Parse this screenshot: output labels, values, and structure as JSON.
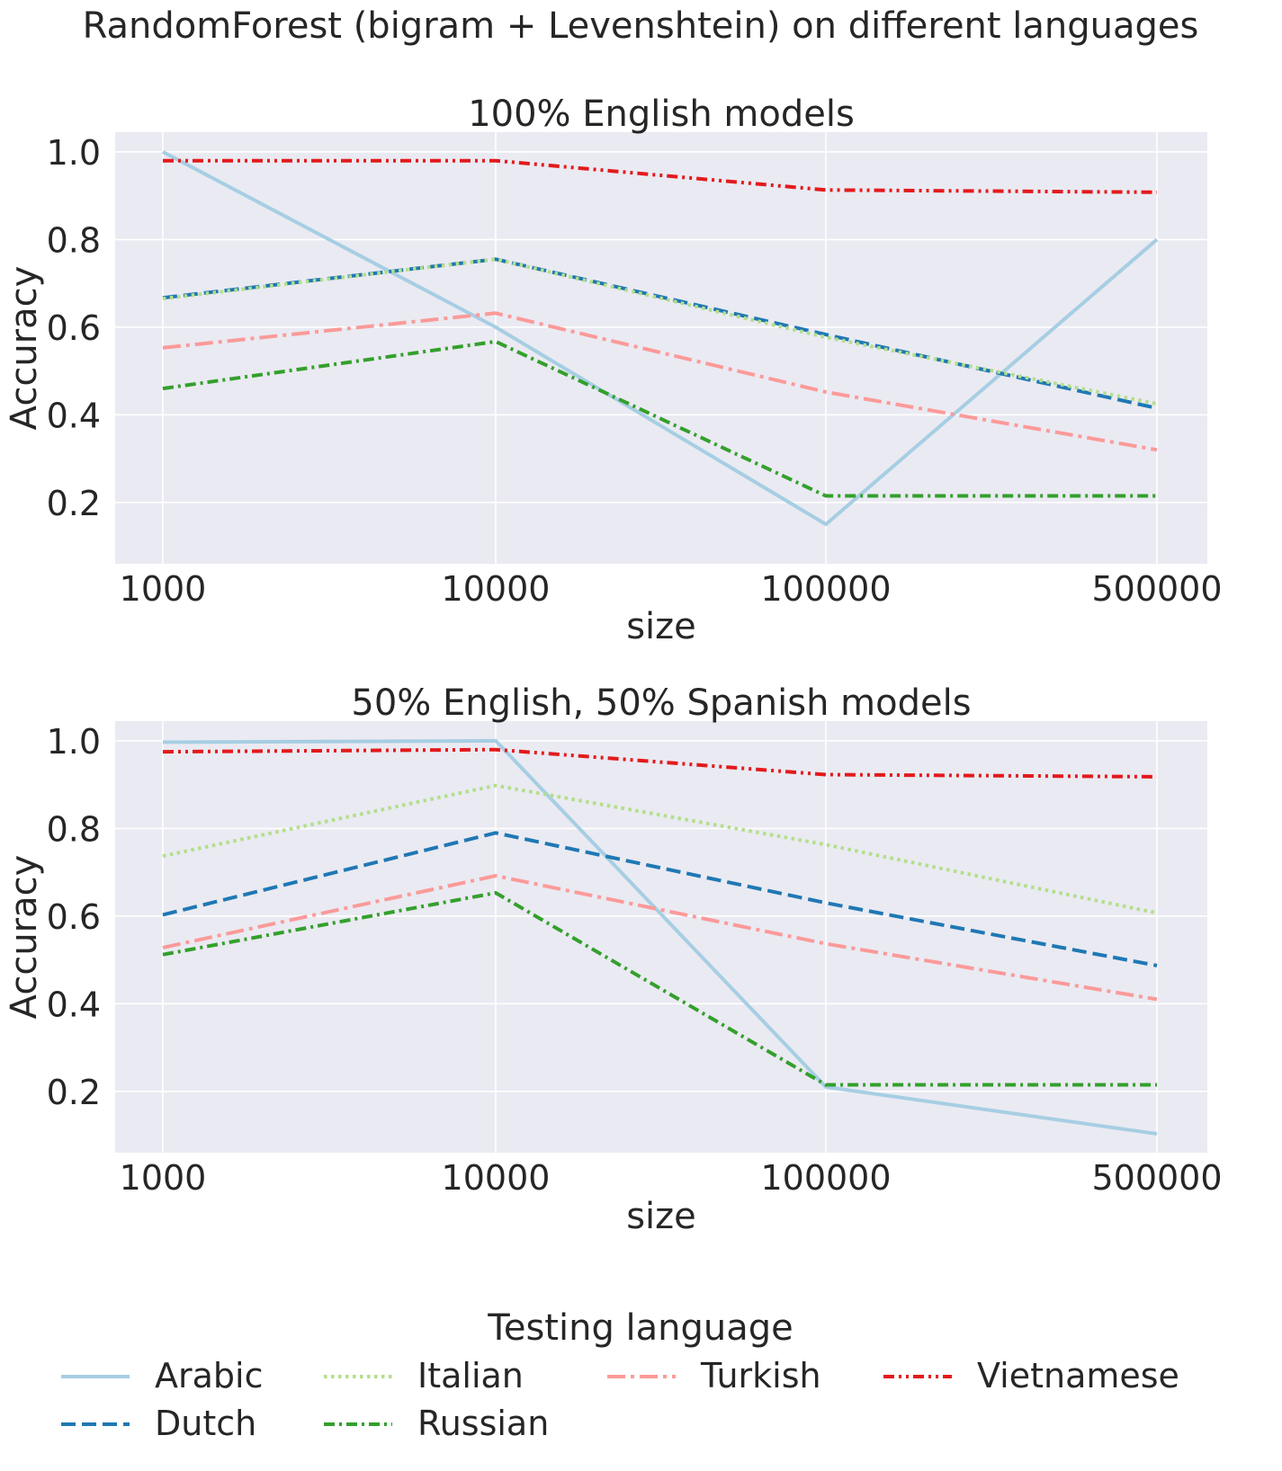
{
  "title": "RandomForest (bigram + Levenshtein) on different languages",
  "legend_title": "Testing language",
  "chart_data": [
    {
      "type": "line",
      "title": "100% English models",
      "xlabel": "size",
      "ylabel": "Accuracy",
      "categories": [
        "1000",
        "10000",
        "100000",
        "500000"
      ],
      "yticks": [
        "0.2",
        "0.4",
        "0.6",
        "0.8",
        "1.0"
      ],
      "ylim": [
        0.06,
        1.045
      ],
      "grid": true,
      "series": [
        {
          "name": "Arabic",
          "values": [
            1.0,
            0.6,
            0.15,
            0.8
          ]
        },
        {
          "name": "Dutch",
          "values": [
            0.667,
            0.755,
            0.583,
            0.415
          ]
        },
        {
          "name": "Italian",
          "values": [
            0.665,
            0.755,
            0.577,
            0.425
          ]
        },
        {
          "name": "Turkish",
          "values": [
            0.553,
            0.632,
            0.452,
            0.32
          ]
        },
        {
          "name": "Russian",
          "values": [
            0.46,
            0.567,
            0.215,
            0.215
          ]
        },
        {
          "name": "Vietnamese",
          "values": [
            0.98,
            0.98,
            0.913,
            0.908
          ]
        }
      ]
    },
    {
      "type": "line",
      "title": "50% English, 50% Spanish models",
      "xlabel": "size",
      "ylabel": "Accuracy",
      "categories": [
        "1000",
        "10000",
        "100000",
        "500000"
      ],
      "yticks": [
        "0.2",
        "0.4",
        "0.6",
        "0.8",
        "1.0"
      ],
      "ylim": [
        0.06,
        1.045
      ],
      "grid": true,
      "series": [
        {
          "name": "Arabic",
          "values": [
            0.997,
            1.0,
            0.21,
            0.103
          ]
        },
        {
          "name": "Dutch",
          "values": [
            0.603,
            0.79,
            0.63,
            0.487
          ]
        },
        {
          "name": "Italian",
          "values": [
            0.737,
            0.898,
            0.763,
            0.607
          ]
        },
        {
          "name": "Turkish",
          "values": [
            0.528,
            0.692,
            0.537,
            0.41
          ]
        },
        {
          "name": "Russian",
          "values": [
            0.512,
            0.653,
            0.215,
            0.215
          ]
        },
        {
          "name": "Vietnamese",
          "values": [
            0.975,
            0.98,
            0.923,
            0.918
          ]
        }
      ]
    }
  ],
  "styles": {
    "Arabic": {
      "color": "#a6cee3",
      "dash": "none"
    },
    "Dutch": {
      "color": "#1f78b4",
      "dash": "dashed"
    },
    "Italian": {
      "color": "#b2df8a",
      "dash": "dotted"
    },
    "Turkish": {
      "color": "#fb9a99",
      "dash": "dashdot"
    },
    "Russian": {
      "color": "#33a02c",
      "dash": "dashdot-tight"
    },
    "Vietnamese": {
      "color": "#e31a1c",
      "dash": "dashdotdot"
    }
  },
  "plot_background": "#eaeaf2"
}
